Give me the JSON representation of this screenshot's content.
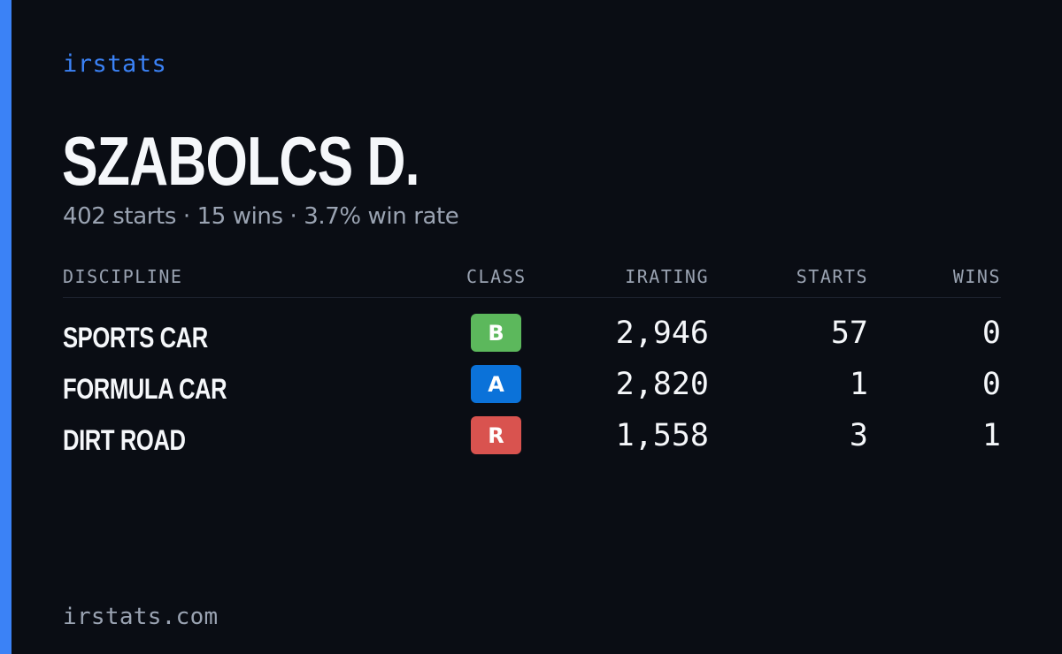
{
  "brand": "irstats",
  "driver": {
    "name": "SZABOLCS D.",
    "summary": "402 starts · 15 wins · 3.7% win rate"
  },
  "table": {
    "headers": {
      "discipline": "DISCIPLINE",
      "class": "CLASS",
      "irating": "IRATING",
      "starts": "STARTS",
      "wins": "WINS"
    },
    "rows": [
      {
        "discipline": "SPORTS CAR",
        "class": "B",
        "class_color": "#5cb85c",
        "irating": "2,946",
        "starts": "57",
        "wins": "0"
      },
      {
        "discipline": "FORMULA CAR",
        "class": "A",
        "class_color": "#0b72d9",
        "irating": "2,820",
        "starts": "1",
        "wins": "0"
      },
      {
        "discipline": "DIRT ROAD",
        "class": "R",
        "class_color": "#d9534f",
        "irating": "1,558",
        "starts": "3",
        "wins": "1"
      }
    ]
  },
  "footer": {
    "domain": "irstats.com"
  },
  "colors": {
    "background": "#0a0d14",
    "accent": "#3b82f6",
    "text_primary": "#f5f7fa",
    "text_muted": "#9aa3b2"
  }
}
